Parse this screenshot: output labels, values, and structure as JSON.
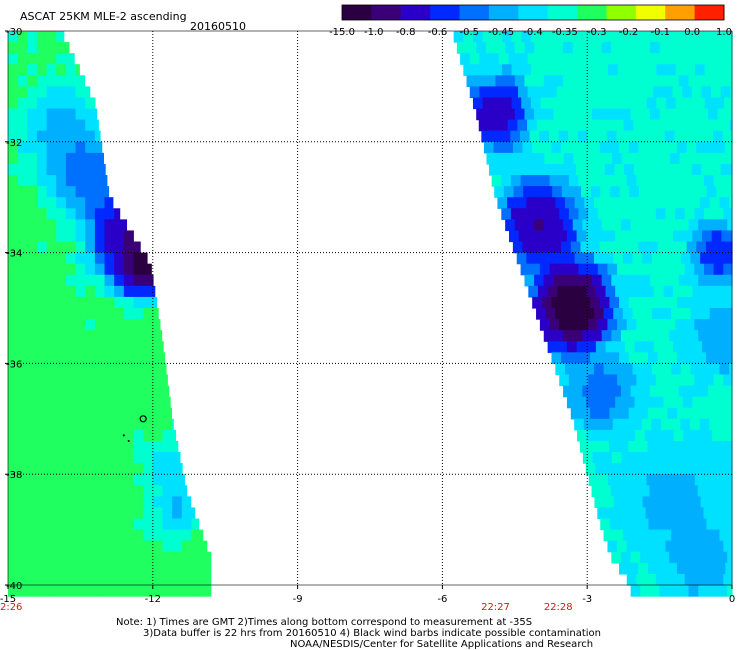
{
  "header": {
    "title": "ASCAT 25KM MLE-2 ascending",
    "date": "20160510"
  },
  "colorbar": {
    "labels": [
      "-15.0",
      "-1.0",
      "-0.8",
      "-0.6",
      "-0.5",
      "-0.45",
      "-0.4",
      "-0.35",
      "-0.3",
      "-0.2",
      "-0.1",
      "0.0",
      "1.0"
    ],
    "colors": [
      "#2a0040",
      "#3a0078",
      "#2a00c8",
      "#0028ff",
      "#0070ff",
      "#00b0ff",
      "#00e0ff",
      "#00ffd0",
      "#20ff60",
      "#90ff00",
      "#f0ff00",
      "#ffa000",
      "#ff2000"
    ]
  },
  "footer": {
    "note1": "Note: 1) Times are GMT 2)Times along bottom correspond to measurement at -35S",
    "note2": "3)Data buffer is 22 hrs from 20160510 4) Black wind barbs indicate possible contamination",
    "note3": "NOAA/NESDIS/Center for Satellite Applications and Research"
  },
  "times": [
    "22:26",
    "22:27",
    "22:28"
  ],
  "chart_data": {
    "type": "heatmap",
    "title": "ASCAT 25KM MLE-2 ascending",
    "date": "20160510",
    "xlim": [
      -15,
      0
    ],
    "ylim": [
      -40,
      -30
    ],
    "x_ticks": [
      -15,
      -12,
      -9,
      -6,
      -3,
      0
    ],
    "x_tick_labels": [
      "-15",
      "-12",
      "-9",
      "-6",
      "-3",
      "0"
    ],
    "y_ticks": [
      -30,
      -32,
      -34,
      -36,
      -38,
      -40
    ],
    "y_tick_labels": [
      "-30",
      "-32",
      "-34",
      "-36",
      "-38",
      "-40"
    ],
    "grid": true,
    "colorbar_levels": [
      -15.0,
      -1.0,
      -0.8,
      -0.6,
      -0.5,
      -0.45,
      -0.4,
      -0.35,
      -0.3,
      -0.2,
      -0.1,
      0.0,
      1.0
    ],
    "time_labels": [
      {
        "lon": -15,
        "text": "22:26"
      },
      {
        "lon": -4.9,
        "text": "22:27"
      },
      {
        "lon": -3.6,
        "text": "22:28"
      }
    ],
    "swaths": [
      {
        "name": "west",
        "lon_min": -15,
        "east_edge": [
          [
            -30,
            -13.9
          ],
          [
            -31.3,
            -13.2
          ],
          [
            -33.0,
            -12.9
          ],
          [
            -34.2,
            -12.05
          ],
          [
            -35.6,
            -11.8
          ],
          [
            -37.0,
            -11.6
          ],
          [
            -38.3,
            -11.3
          ],
          [
            -39.5,
            -10.8
          ],
          [
            -40,
            -10.8
          ]
        ],
        "features": [
          {
            "lat": -31.8,
            "lon": -13.9,
            "value": -0.42,
            "spread": 0.9
          },
          {
            "lat": -33.6,
            "lon": -12.5,
            "value": -0.75,
            "spread": 0.8
          },
          {
            "lat": -32.6,
            "lon": -13.4,
            "value": -0.5,
            "spread": 0.7
          },
          {
            "lat": -34.2,
            "lon": -12.2,
            "value": -1.2,
            "spread": 0.45
          },
          {
            "lat": -38.6,
            "lon": -11.5,
            "value": -0.42,
            "spread": 0.5
          },
          {
            "lat": -37.8,
            "lon": -11.7,
            "value": -0.38,
            "spread": 0.5
          }
        ],
        "base_value": -0.27
      },
      {
        "name": "east",
        "lon_max": 0,
        "west_edge": [
          [
            -30,
            -5.8
          ],
          [
            -31.5,
            -5.3
          ],
          [
            -33.0,
            -4.9
          ],
          [
            -34.5,
            -4.3
          ],
          [
            -36.0,
            -3.7
          ],
          [
            -37.0,
            -3.3
          ],
          [
            -38.0,
            -3.0
          ],
          [
            -39.0,
            -2.7
          ],
          [
            -39.5,
            -2.5
          ],
          [
            -40,
            -2.1
          ]
        ],
        "features": [
          {
            "lat": -31.5,
            "lon": -4.9,
            "value": -0.7,
            "spread": 0.6
          },
          {
            "lat": -33.5,
            "lon": -4.0,
            "value": -0.8,
            "spread": 0.7
          },
          {
            "lat": -35.0,
            "lon": -3.3,
            "value": -1.5,
            "spread": 0.6
          },
          {
            "lat": -36.5,
            "lon": -2.7,
            "value": -0.5,
            "spread": 0.7
          },
          {
            "lat": -35.5,
            "lon": -0.2,
            "value": -0.45,
            "spread": 0.7
          },
          {
            "lat": -34.0,
            "lon": -0.3,
            "value": -0.6,
            "spread": 0.5
          },
          {
            "lat": -38.5,
            "lon": -1.2,
            "value": -0.42,
            "spread": 1.2
          },
          {
            "lat": -39.6,
            "lon": -0.6,
            "value": -0.45,
            "spread": 0.6
          }
        ],
        "base_value": -0.33
      }
    ],
    "wind_barbs": [
      {
        "lat": -37.0,
        "lon": -12.2
      },
      {
        "lat": -37.3,
        "lon": -12.6
      },
      {
        "lat": -37.4,
        "lon": -12.5
      }
    ]
  }
}
